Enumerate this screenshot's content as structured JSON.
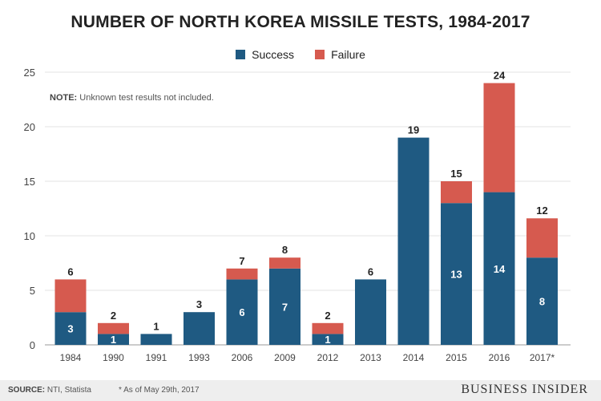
{
  "chart_data": {
    "type": "bar",
    "stacked": true,
    "title": "NUMBER OF NORTH KOREA MISSILE TESTS, 1984-2017",
    "categories": [
      "1984",
      "1990",
      "1991",
      "1993",
      "2006",
      "2009",
      "2012",
      "2013",
      "2014",
      "2015",
      "2016",
      "2017*"
    ],
    "series": [
      {
        "name": "Success",
        "color": "#1f5a82",
        "values": [
          3,
          1,
          1,
          3,
          6,
          7,
          1,
          6,
          19,
          13,
          14,
          8
        ]
      },
      {
        "name": "Failure",
        "color": "#d65a4f",
        "values": [
          3,
          1,
          0,
          0,
          1,
          1,
          1,
          0,
          0,
          2,
          10,
          3.6
        ]
      }
    ],
    "totals": [
      "6",
      "2",
      "1",
      "3",
      "7",
      "8",
      "2",
      "6",
      "19",
      "15",
      "24",
      "12"
    ],
    "success_labels": [
      "3",
      "1",
      "",
      "",
      "6",
      "7",
      "1",
      "",
      "",
      "13",
      "14",
      "8"
    ],
    "ylim": [
      0,
      25
    ],
    "yticks": [
      0,
      5,
      10,
      15,
      20,
      25
    ],
    "grid": true,
    "legend_position": "top-center",
    "note_label": "NOTE:",
    "note_text": "Unknown test results not included."
  },
  "footer": {
    "source_label": "SOURCE:",
    "source_text": "NTI, Statista",
    "footnote": "* As of May 29th, 2017",
    "brand": "BUSINESS INSIDER"
  }
}
